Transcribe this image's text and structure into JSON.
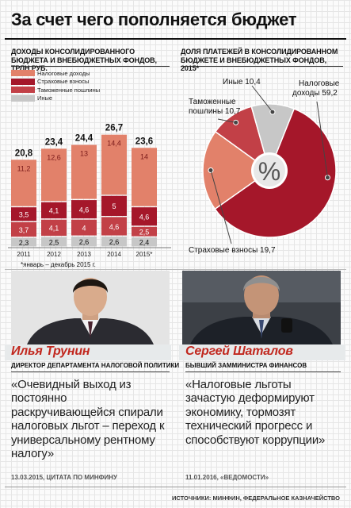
{
  "title": "За счет чего пополняется бюджет",
  "left_subtitle": "Доходы консолидированного бюджета и внебюджетных фондов, трлн руб.",
  "right_subtitle": "Доля платежей в консолидированном бюджете и внебюджетных фондов, 2015*",
  "note": "*январь – декабрь 2015 г.",
  "colors": {
    "tax": "#e2816a",
    "insurance": "#a5172a",
    "customs": "#c24047",
    "other": "#c7c7c7",
    "accent": "#c1271e"
  },
  "legend": [
    "Налоговые доходы",
    "Страховые взносы",
    "Таможенные пошлины",
    "Иные"
  ],
  "chart_data": [
    {
      "type": "bar",
      "stacked": true,
      "categories": [
        "2011",
        "2012",
        "2013",
        "2014",
        "2015*"
      ],
      "series": [
        {
          "name": "Иные",
          "values": [
            2.3,
            2.5,
            2.6,
            2.6,
            2.4
          ]
        },
        {
          "name": "Таможенные пошлины",
          "values": [
            3.7,
            4.1,
            4.0,
            4.6,
            2.5
          ]
        },
        {
          "name": "Страховые взносы",
          "values": [
            3.5,
            4.1,
            4.6,
            5.0,
            4.6
          ]
        },
        {
          "name": "Налоговые доходы",
          "values": [
            11.2,
            12.6,
            13.0,
            14.4,
            14.0
          ]
        }
      ],
      "totals": [
        "20,8",
        "23,4",
        "24,4",
        "26,7",
        "23,6"
      ],
      "segment_labels": [
        [
          "2,3",
          "3,7",
          "3,5",
          "11,2"
        ],
        [
          "2,5",
          "4,1",
          "4,1",
          "12,6"
        ],
        [
          "2,6",
          "4",
          "4,6",
          "13"
        ],
        [
          "2,6",
          "4,6",
          "5",
          "14,4"
        ],
        [
          "2,4",
          "2,5",
          "4,6",
          "14"
        ]
      ]
    },
    {
      "type": "pie",
      "donut": true,
      "center_label": "%",
      "slices": [
        {
          "name": "Налоговые доходы",
          "value": 59.2,
          "label": "Налоговые доходы 59,2"
        },
        {
          "name": "Страховые взносы",
          "value": 19.7,
          "label": "Страховые взносы 19,7"
        },
        {
          "name": "Таможенные пошлины",
          "value": 10.7,
          "label": "Таможенные пошлины 10,7"
        },
        {
          "name": "Иные",
          "value": 10.4,
          "label": "Иные 10,4"
        }
      ]
    }
  ],
  "people": [
    {
      "name": "Илья Трунин",
      "role": "Директор департамента налоговой политики",
      "quote": "«Очевидный выход из постоянно раскручивающейся спирали налоговых льгот – переход к универсальному рентному налогу»",
      "source": "13.03.2015, цитата по Минфину"
    },
    {
      "name": "Сергей Шаталов",
      "role": "Бывший замминистра финансов",
      "quote": "«Налоговые льготы зачастую деформируют экономику, тормозят технический прогресс и способствуют коррупции»",
      "source": "11.01.2016, «Ведомости»"
    }
  ],
  "sources": "Источники: Минфин, Федеральное казначейство"
}
